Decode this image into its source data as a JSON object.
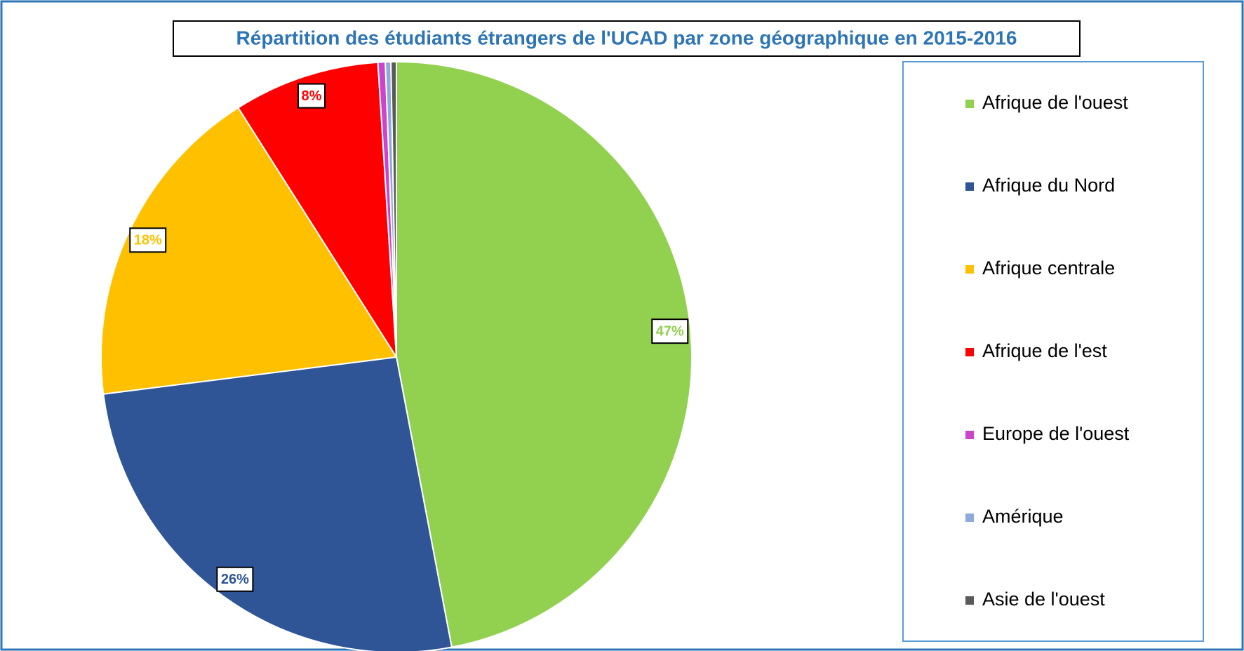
{
  "chart_data": {
    "type": "pie",
    "title": "Répartition des étudiants étrangers de l'UCAD par zone géographique en 2015-2016",
    "categories": [
      "Afrique de l'ouest",
      "Afrique du Nord",
      "Afrique centrale",
      "Afrique de l'est",
      "Europe de l'ouest",
      "Amérique",
      "Asie de l'ouest"
    ],
    "values": [
      47,
      26,
      18,
      8,
      0.4,
      0.3,
      0.3
    ],
    "value_labels": [
      "47%",
      "26%",
      "18%",
      "8%",
      null,
      null,
      null
    ],
    "colors": [
      "#92d050",
      "#2f5597",
      "#ffc000",
      "#ff0000",
      "#cc44cc",
      "#8eaadb",
      "#595959"
    ],
    "legend": "right"
  }
}
